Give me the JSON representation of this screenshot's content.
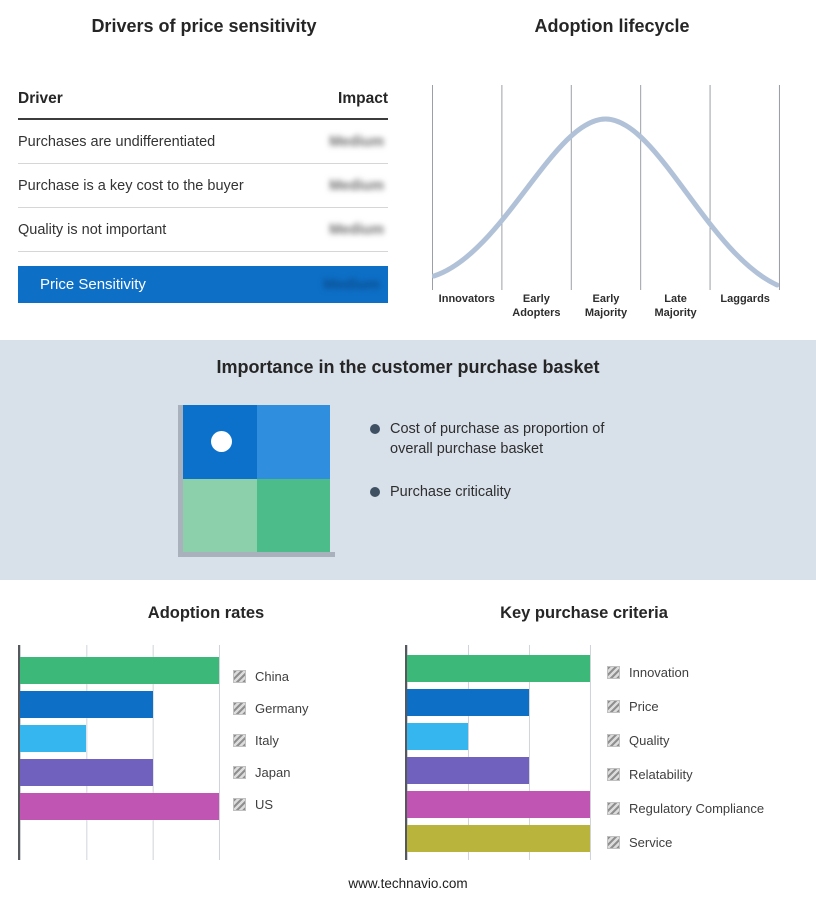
{
  "drivers_panel": {
    "title": "Drivers of price sensitivity",
    "columns": {
      "driver": "Driver",
      "impact": "Impact"
    },
    "rows": [
      {
        "driver": "Purchases are undifferentiated",
        "impact": "Medium"
      },
      {
        "driver": "Purchase is a key cost to the buyer",
        "impact": "Medium"
      },
      {
        "driver": "Quality is not important",
        "impact": "Medium"
      }
    ],
    "highlight": {
      "driver": "Price Sensitivity",
      "impact": "Medium",
      "bg_color": "#0d6fc6"
    },
    "impact_values_blurred": true
  },
  "basket_panel": {
    "title": "Importance in the customer purchase basket",
    "bullets": [
      "Cost of purchase as proportion of overall purchase basket",
      "Purchase criticality"
    ],
    "band_bg_color": "#d8e0ea",
    "quadrant_colors": {
      "top_left": "#0b71cb",
      "top_right": "#2f8edd",
      "bottom_left": "#8bd0aa",
      "bottom_right": "#4cbd8a"
    }
  },
  "chart_data": [
    {
      "type": "bar",
      "orientation": "horizontal",
      "title": "Adoption rates",
      "categories": [
        "China",
        "Germany",
        "Italy",
        "Japan",
        "US"
      ],
      "values": [
        3,
        2,
        1,
        2,
        3
      ],
      "xlim": [
        0,
        3
      ],
      "grid": true,
      "legend_position": "right",
      "legend_swatch_style": "gray-hatch",
      "colors": [
        "#3cb878",
        "#0d6fc6",
        "#35b6ee",
        "#6f61bd",
        "#c155b4"
      ]
    },
    {
      "type": "bar",
      "orientation": "horizontal",
      "title": "Key purchase criteria",
      "categories": [
        "Innovation",
        "Price",
        "Quality",
        "Relatability",
        "Regulatory Compliance",
        "Service"
      ],
      "values": [
        3,
        2,
        1,
        2,
        3,
        3
      ],
      "xlim": [
        0,
        3
      ],
      "grid": true,
      "legend_position": "right",
      "legend_swatch_style": "gray-hatch",
      "colors": [
        "#3cb878",
        "#0d6fc6",
        "#35b6ee",
        "#6f61bd",
        "#c155b4",
        "#b8b43c"
      ]
    },
    {
      "type": "line",
      "title": "Adoption lifecycle",
      "curve": "bell",
      "categories": [
        "Innovators",
        "Early Adopters",
        "Early Majority",
        "Late Majority",
        "Laggards"
      ],
      "values": [
        8,
        55,
        100,
        55,
        8
      ],
      "ylim": [
        0,
        100
      ],
      "line_color": "#b0c1d8",
      "grid": "vertical"
    },
    {
      "type": "table",
      "title": "Drivers of price sensitivity",
      "columns": [
        "Driver",
        "Impact"
      ],
      "rows": [
        [
          "Purchases are undifferentiated",
          "Medium"
        ],
        [
          "Purchase is a key cost to the buyer",
          "Medium"
        ],
        [
          "Quality is not important",
          "Medium"
        ],
        [
          "Price Sensitivity",
          "Medium"
        ]
      ]
    }
  ],
  "footer": {
    "text": "www.technavio.com"
  }
}
